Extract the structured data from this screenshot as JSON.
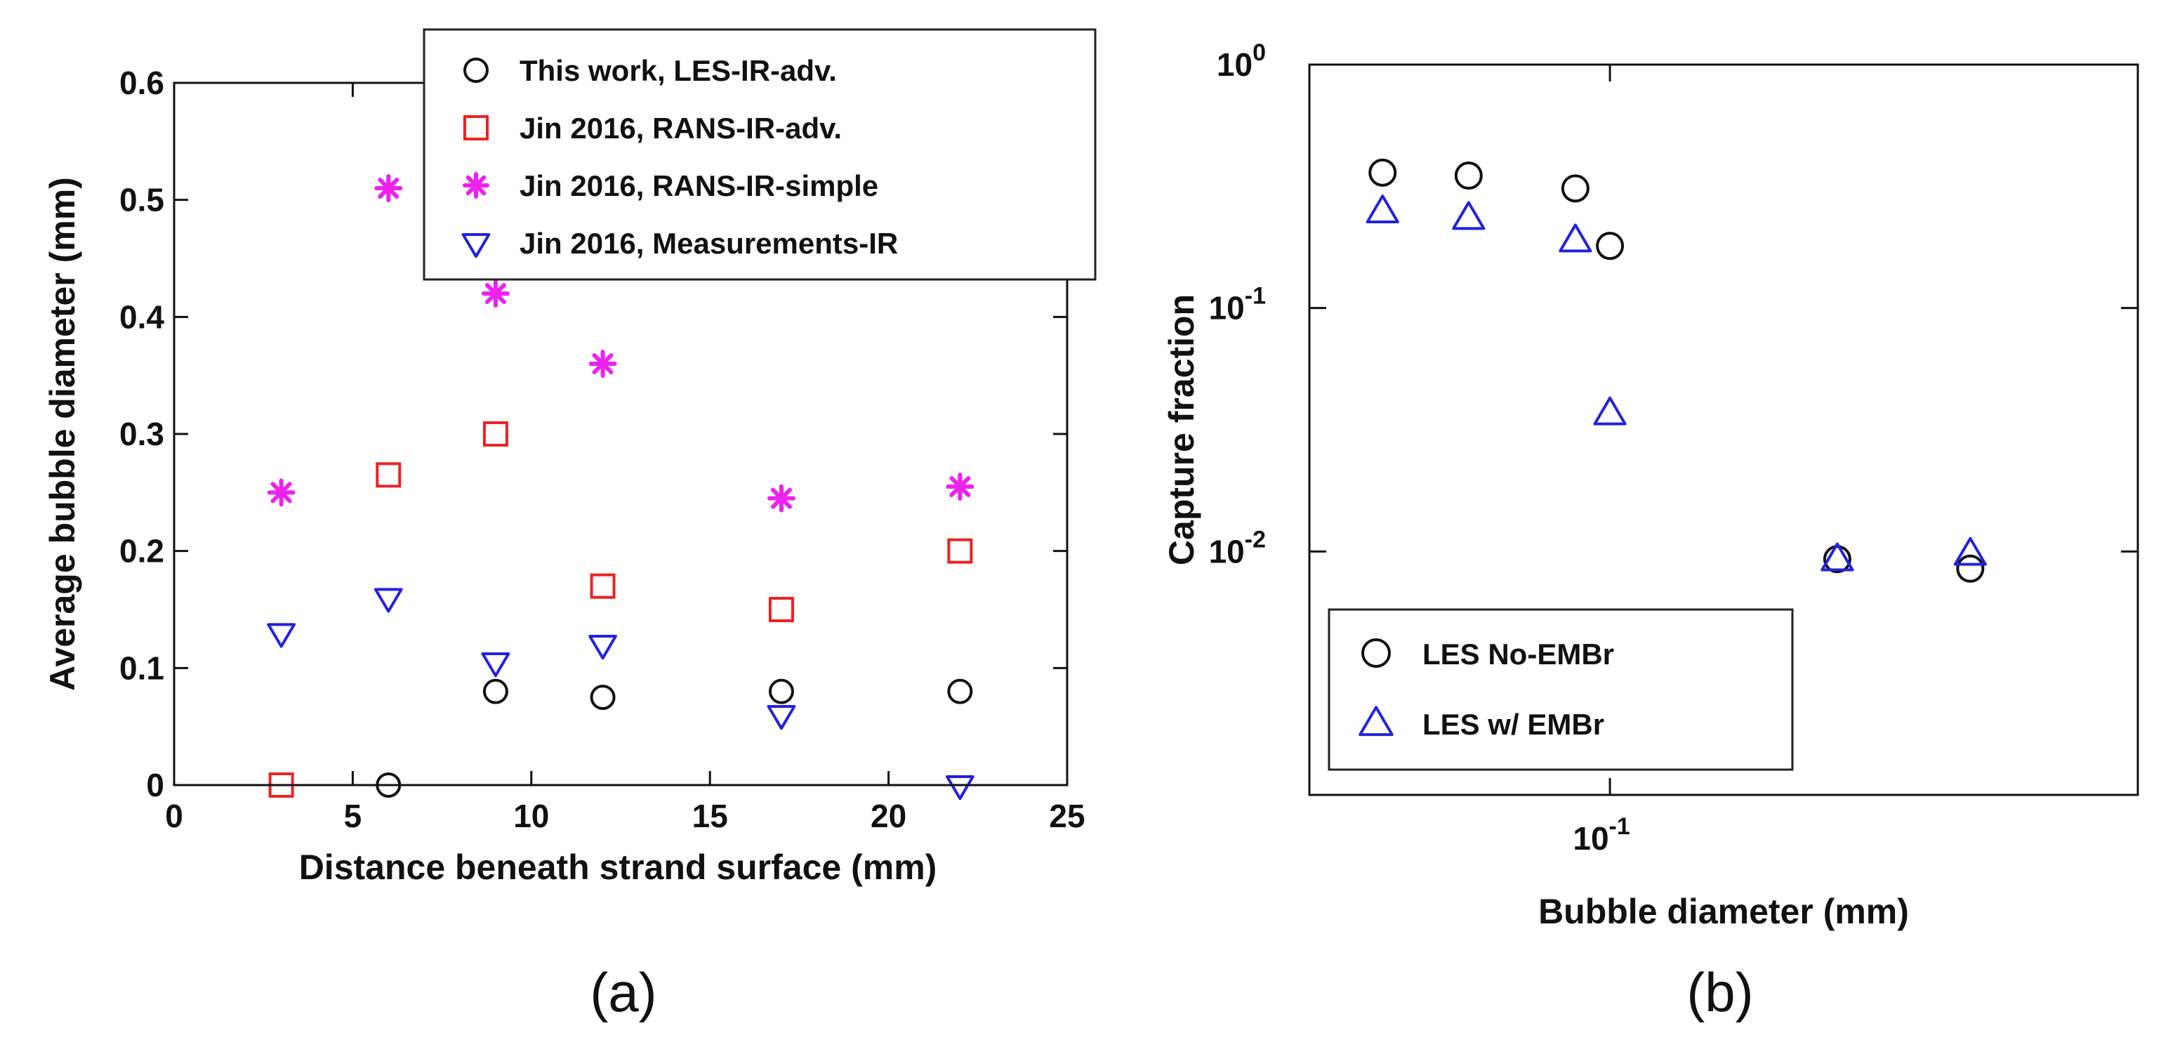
{
  "chart_data": [
    {
      "panel": "(a)",
      "type": "scatter",
      "xlabel": "Distance beneath strand surface (mm)",
      "ylabel": "Average bubble diameter (mm)",
      "xlim": [
        0,
        25
      ],
      "ylim": [
        0,
        0.6
      ],
      "xticks": [
        0,
        5,
        10,
        15,
        20,
        25
      ],
      "yticks": [
        0,
        0.1,
        0.2,
        0.3,
        0.4,
        0.5,
        0.6
      ],
      "xtick_labels": [
        "0",
        "5",
        "10",
        "15",
        "20",
        "25"
      ],
      "ytick_labels": [
        "0",
        "0.1",
        "0.2",
        "0.3",
        "0.4",
        "0.5",
        "0.6"
      ],
      "legend_position": "top-right",
      "series": [
        {
          "name": "This work, LES-IR-adv.",
          "marker": "circle",
          "color": "#111111",
          "points": [
            [
              6,
              0.0
            ],
            [
              9,
              0.08
            ],
            [
              12,
              0.075
            ],
            [
              17,
              0.08
            ],
            [
              22,
              0.08
            ]
          ]
        },
        {
          "name": "Jin 2016, RANS-IR-adv.",
          "marker": "square",
          "color": "#ee2222",
          "points": [
            [
              3,
              0.0
            ],
            [
              6,
              0.265
            ],
            [
              9,
              0.3
            ],
            [
              12,
              0.17
            ],
            [
              17,
              0.15
            ],
            [
              22,
              0.2
            ]
          ]
        },
        {
          "name": "Jin 2016, RANS-IR-simple",
          "marker": "star",
          "color": "#ee22ee",
          "points": [
            [
              3,
              0.25
            ],
            [
              6,
              0.51
            ],
            [
              9,
              0.42
            ],
            [
              12,
              0.36
            ],
            [
              17,
              0.245
            ],
            [
              22,
              0.255
            ]
          ]
        },
        {
          "name": "Jin 2016, Measurements-IR",
          "marker": "triangle-down",
          "color": "#2222dd",
          "points": [
            [
              3,
              0.13
            ],
            [
              6,
              0.16
            ],
            [
              9,
              0.105
            ],
            [
              12,
              0.12
            ],
            [
              17,
              0.06
            ],
            [
              22,
              0.0
            ]
          ]
        }
      ]
    },
    {
      "panel": "(b)",
      "type": "scatter",
      "xscale": "log",
      "yscale": "log",
      "xlabel": "Bubble diameter (mm)",
      "ylabel": "Capture fraction",
      "xlim": [
        0.04,
        0.5
      ],
      "ylim": [
        0.001,
        1
      ],
      "yticks": [
        1,
        0.1,
        0.01
      ],
      "ytick_labels": [
        {
          "base": "10",
          "exp": "0"
        },
        {
          "base": "10",
          "exp": "-1"
        },
        {
          "base": "10",
          "exp": "-2"
        }
      ],
      "xticks": [
        0.1
      ],
      "xtick_labels": [
        {
          "base": "10",
          "exp": "-1"
        }
      ],
      "legend_position": "bottom-left",
      "series": [
        {
          "name": "LES No-EMBr",
          "marker": "circle",
          "color": "#111111",
          "points": [
            [
              0.05,
              0.36
            ],
            [
              0.065,
              0.35
            ],
            [
              0.09,
              0.31
            ],
            [
              0.1,
              0.18
            ],
            [
              0.2,
              0.0093
            ],
            [
              0.3,
              0.0085
            ]
          ]
        },
        {
          "name": "LES w/ EMBr",
          "marker": "triangle-up",
          "color": "#2222dd",
          "points": [
            [
              0.05,
              0.25
            ],
            [
              0.065,
              0.235
            ],
            [
              0.09,
              0.19
            ],
            [
              0.1,
              0.037
            ],
            [
              0.2,
              0.0093
            ],
            [
              0.3,
              0.0098
            ]
          ]
        }
      ]
    }
  ]
}
